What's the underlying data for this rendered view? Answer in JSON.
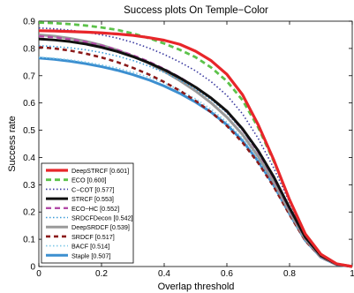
{
  "chart_data": {
    "type": "line",
    "title": "Success plots On Temple−Color",
    "xlabel": "Overlap threshold",
    "ylabel": "Success rate",
    "xlim": [
      0,
      1
    ],
    "ylim": [
      0,
      0.9
    ],
    "x_ticks": [
      "0",
      "0.2",
      "0.4",
      "0.6",
      "0.8",
      "1"
    ],
    "y_ticks": [
      "0",
      "0.1",
      "0.2",
      "0.3",
      "0.4",
      "0.5",
      "0.6",
      "0.7",
      "0.8",
      "0.9"
    ],
    "grid": false,
    "legend_position": "bottom-left",
    "x": [
      0,
      0.05,
      0.1,
      0.15,
      0.2,
      0.25,
      0.3,
      0.35,
      0.4,
      0.45,
      0.5,
      0.55,
      0.6,
      0.65,
      0.7,
      0.75,
      0.8,
      0.85,
      0.9,
      0.95,
      1
    ],
    "series": [
      {
        "name": "DeepSTRCF [0.601]",
        "color": "#e8262a",
        "dash": "solid",
        "width": 3.2,
        "values": [
          0.865,
          0.864,
          0.862,
          0.86,
          0.857,
          0.853,
          0.848,
          0.84,
          0.83,
          0.815,
          0.79,
          0.755,
          0.705,
          0.63,
          0.52,
          0.39,
          0.245,
          0.12,
          0.045,
          0.01,
          0.0
        ]
      },
      {
        "name": "ECO [0.600]",
        "color": "#5cc24a",
        "dash": "6,4",
        "width": 2.8,
        "values": [
          0.895,
          0.893,
          0.889,
          0.884,
          0.877,
          0.868,
          0.855,
          0.838,
          0.818,
          0.795,
          0.768,
          0.73,
          0.68,
          0.61,
          0.51,
          0.385,
          0.245,
          0.12,
          0.045,
          0.01,
          0.0
        ]
      },
      {
        "name": "C−COT [0.577]",
        "color": "#3a3aa0",
        "dash": "1.5,2.5",
        "width": 1.6,
        "values": [
          0.875,
          0.872,
          0.867,
          0.86,
          0.85,
          0.838,
          0.822,
          0.802,
          0.778,
          0.75,
          0.718,
          0.678,
          0.628,
          0.56,
          0.47,
          0.36,
          0.235,
          0.115,
          0.043,
          0.01,
          0.0
        ]
      },
      {
        "name": "STRCF [0.553]",
        "color": "#111111",
        "dash": "solid",
        "width": 3.0,
        "values": [
          0.835,
          0.831,
          0.825,
          0.816,
          0.804,
          0.789,
          0.77,
          0.748,
          0.722,
          0.692,
          0.658,
          0.618,
          0.57,
          0.505,
          0.425,
          0.328,
          0.215,
          0.108,
          0.04,
          0.009,
          0.0
        ]
      },
      {
        "name": "ECO−HC [0.552]",
        "color": "#b24aa8",
        "dash": "6,4",
        "width": 2.4,
        "values": [
          0.845,
          0.841,
          0.834,
          0.824,
          0.811,
          0.795,
          0.775,
          0.752,
          0.725,
          0.694,
          0.659,
          0.618,
          0.568,
          0.502,
          0.42,
          0.323,
          0.21,
          0.105,
          0.038,
          0.008,
          0.0
        ]
      },
      {
        "name": "SRDCFDecon [0.542]",
        "color": "#3a9ad8",
        "dash": "1.5,2.5",
        "width": 1.6,
        "values": [
          0.81,
          0.807,
          0.802,
          0.795,
          0.785,
          0.772,
          0.756,
          0.736,
          0.712,
          0.684,
          0.651,
          0.612,
          0.563,
          0.499,
          0.418,
          0.322,
          0.21,
          0.104,
          0.038,
          0.008,
          0.0
        ]
      },
      {
        "name": "DeepSRDCF [0.539]",
        "color": "#9a9a9a",
        "dash": "solid",
        "width": 3.0,
        "values": [
          0.85,
          0.845,
          0.837,
          0.826,
          0.812,
          0.794,
          0.772,
          0.746,
          0.716,
          0.682,
          0.644,
          0.6,
          0.548,
          0.484,
          0.404,
          0.31,
          0.2,
          0.1,
          0.036,
          0.008,
          0.0
        ]
      },
      {
        "name": "SRDCF [0.517]",
        "color": "#8b1a1a",
        "dash": "5,4",
        "width": 2.6,
        "values": [
          0.805,
          0.8,
          0.792,
          0.781,
          0.767,
          0.75,
          0.729,
          0.705,
          0.677,
          0.645,
          0.608,
          0.566,
          0.516,
          0.455,
          0.38,
          0.292,
          0.19,
          0.095,
          0.034,
          0.007,
          0.0
        ]
      },
      {
        "name": "BACF [0.514]",
        "color": "#7ec8e8",
        "dash": "1.5,2.5",
        "width": 1.6,
        "values": [
          0.768,
          0.764,
          0.758,
          0.75,
          0.74,
          0.728,
          0.713,
          0.695,
          0.673,
          0.647,
          0.615,
          0.577,
          0.53,
          0.47,
          0.393,
          0.302,
          0.196,
          0.097,
          0.035,
          0.007,
          0.0
        ]
      },
      {
        "name": "Staple [0.507]",
        "color": "#3c8fd0",
        "dash": "solid",
        "width": 3.0,
        "values": [
          0.765,
          0.76,
          0.753,
          0.744,
          0.733,
          0.72,
          0.704,
          0.685,
          0.662,
          0.635,
          0.603,
          0.566,
          0.52,
          0.461,
          0.386,
          0.297,
          0.193,
          0.096,
          0.034,
          0.007,
          0.0
        ]
      }
    ]
  }
}
